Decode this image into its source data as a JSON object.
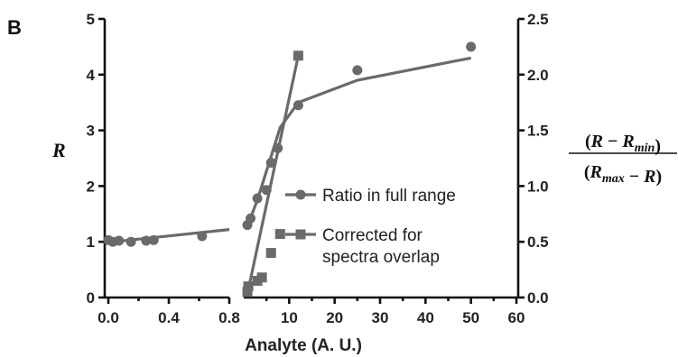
{
  "chart_data": {
    "type": "line",
    "panel_label": "B",
    "xlabel": "Analyte (A. U.)",
    "left_ylabel": "R",
    "right_ylabel": {
      "numerator": "(R − R_min)",
      "denominator": "(R_max − R)"
    },
    "x_segments": [
      {
        "range": [
          0,
          0.8
        ],
        "ticks": [
          0.0,
          0.4,
          0.8
        ],
        "tick_labels": [
          "0.0",
          "0.4",
          "0.8"
        ]
      },
      {
        "range": [
          0,
          60
        ],
        "ticks": [
          10,
          20,
          30,
          40,
          50,
          60
        ],
        "tick_labels": [
          "10",
          "20",
          "30",
          "40",
          "50",
          "60"
        ]
      }
    ],
    "left_yaxis": {
      "range": [
        0,
        5
      ],
      "ticks": [
        0,
        1,
        2,
        3,
        4,
        5
      ],
      "tick_labels": [
        "0",
        "1",
        "2",
        "3",
        "4",
        "5"
      ]
    },
    "right_yaxis": {
      "range": [
        0,
        2.5
      ],
      "ticks": [
        0,
        0.5,
        1.0,
        1.5,
        2.0,
        2.5
      ],
      "tick_labels": [
        "0.0",
        "0.5",
        "1.0",
        "1.5",
        "2.0",
        "2.5"
      ]
    },
    "series": [
      {
        "name": "Ratio in full range",
        "marker": "circle",
        "axis": "left",
        "color": "#6a6a6a",
        "points_segment1": {
          "x": [
            0.0,
            0.03,
            0.07,
            0.15,
            0.25,
            0.3,
            0.62
          ],
          "y": [
            1.03,
            1.0,
            1.02,
            1.0,
            1.02,
            1.03,
            1.1
          ]
        },
        "points_segment2": {
          "x": [
            0.8,
            1.5,
            3,
            5,
            6,
            7.5,
            12,
            25,
            50
          ],
          "y": [
            1.3,
            1.42,
            1.78,
            1.93,
            2.42,
            2.68,
            3.45,
            4.08,
            4.5
          ]
        },
        "fit_segment1": {
          "x": [
            0.0,
            0.8
          ],
          "y": [
            0.99,
            1.22
          ]
        },
        "fit_segment2": {
          "x": [
            0.8,
            3,
            8,
            12,
            25,
            50
          ],
          "y": [
            1.28,
            1.75,
            3.05,
            3.5,
            3.9,
            4.3
          ]
        }
      },
      {
        "name": "Corrected for spectra overlap",
        "marker": "square",
        "axis": "right",
        "color": "#6a6a6a",
        "points_segment2": {
          "x": [
            0.8,
            1.0,
            3,
            4,
            6,
            8,
            12
          ],
          "y": [
            0.05,
            0.1,
            0.15,
            0.18,
            0.4,
            0.57,
            2.17
          ]
        },
        "fit_segment2": {
          "x": [
            0.8,
            12
          ],
          "y": [
            0.03,
            2.17
          ]
        }
      }
    ],
    "legend": [
      "Ratio in full range",
      "Corrected for spectra overlap"
    ],
    "legend_placement": "center-right"
  }
}
